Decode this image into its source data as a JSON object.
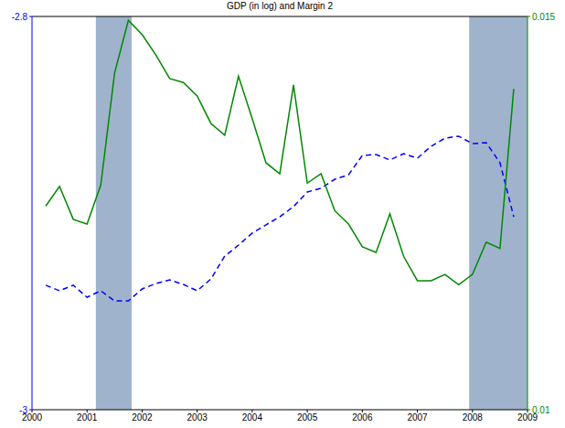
{
  "chart_data": {
    "type": "line",
    "title": "GDP (in log) and Margin 2",
    "x": [
      2000.25,
      2000.5,
      2000.75,
      2001,
      2001.25,
      2001.5,
      2001.75,
      2002,
      2002.25,
      2002.5,
      2002.75,
      2003,
      2003.25,
      2003.5,
      2003.75,
      2004,
      2004.25,
      2004.5,
      2004.75,
      2005,
      2005.25,
      2005.5,
      2005.75,
      2006,
      2006.25,
      2006.5,
      2006.75,
      2007,
      2007.25,
      2007.5,
      2007.75,
      2008,
      2008.25,
      2008.5,
      2008.75
    ],
    "series": [
      {
        "color": "#0000ff",
        "line_style": "dashed",
        "axis": "y",
        "values": [
          -2.9367,
          -2.9395,
          -2.9367,
          -2.9428,
          -2.9395,
          -2.9447,
          -2.9447,
          -2.9386,
          -2.9358,
          -2.934,
          -2.9363,
          -2.9395,
          -2.9335,
          -2.9219,
          -2.9163,
          -2.9102,
          -2.906,
          -2.9019,
          -2.8967,
          -2.8893,
          -2.8874,
          -2.8828,
          -2.8805,
          -2.8707,
          -2.8702,
          -2.873,
          -2.8698,
          -2.8721,
          -2.866,
          -2.8619,
          -2.8609,
          -2.8647,
          -2.8642,
          -2.8744,
          -2.9019
        ]
      },
      {
        "color": "#008800",
        "line_style": "solid",
        "axis": "y2",
        "values": [
          0.01259,
          0.01284,
          0.01242,
          0.01236,
          0.01286,
          0.01428,
          0.01495,
          0.01477,
          0.01451,
          0.01421,
          0.01416,
          0.01399,
          0.01364,
          0.01349,
          0.01424,
          0.0137,
          0.01314,
          0.013,
          0.01413,
          0.01288,
          0.013,
          0.01253,
          0.01236,
          0.01207,
          0.012,
          0.01249,
          0.01195,
          0.01164,
          0.01164,
          0.01172,
          0.01159,
          0.01172,
          0.01213,
          0.01205,
          0.01408
        ]
      }
    ],
    "xlim": [
      2000,
      2009
    ],
    "xticks": [
      2000,
      2001,
      2002,
      2003,
      2004,
      2005,
      2006,
      2007,
      2008,
      2009
    ],
    "ylim": [
      -3,
      -2.8
    ],
    "yticks": [
      -3,
      -2.8
    ],
    "y2lim": [
      0.01,
      0.015
    ],
    "y2ticks": [
      0.01,
      0.015
    ],
    "shaded_x_ranges": [
      [
        2001.16,
        2001.81
      ],
      [
        2007.94,
        2009
      ]
    ],
    "shaded_color": "#9fb4cc",
    "grid": false
  }
}
